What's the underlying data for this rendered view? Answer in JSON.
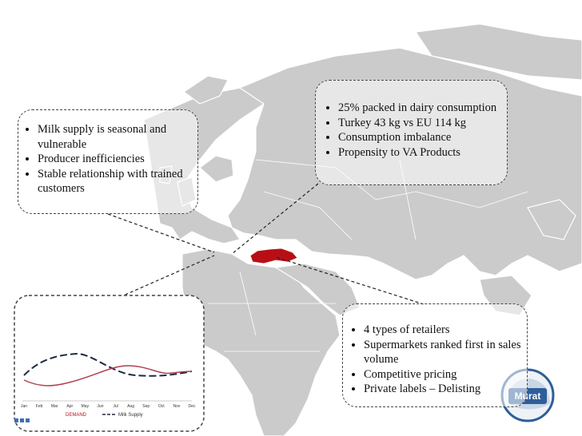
{
  "boxes": [
    {
      "bullets": [
        "Milk supply is seasonal and vulnerable",
        "Producer inefficiencies",
        "Stable relationship with trained customers"
      ]
    },
    {
      "bullets": [
        "25% packed in dairy consumption",
        "Turkey 43 kg vs EU 114 kg",
        "Consumption imbalance",
        "Propensity to VA Products"
      ]
    },
    {
      "bullets": [
        "4 types of retailers",
        "Supermarkets ranked first in sales volume",
        "Competitive pricing",
        "Private labels – Delisting"
      ]
    }
  ],
  "mini_chart": {
    "months": [
      "Jan",
      "Feb",
      "Mar",
      "Apr",
      "May",
      "Jun",
      "Jul",
      "Aug",
      "Sep",
      "Oct",
      "Nov",
      "Dec"
    ],
    "legend": [
      "DEMAND",
      "Milk Supply"
    ]
  },
  "logo": "Murat"
}
